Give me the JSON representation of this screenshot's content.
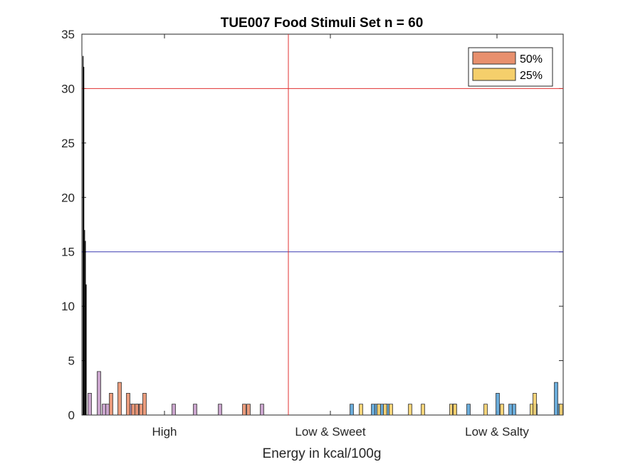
{
  "chart_data": {
    "type": "bar",
    "title": "TUE007 Food Stimuli Set n = 60",
    "xlabel": "Energy in kcal/100g",
    "ylabel": "",
    "ylim": [
      0,
      35
    ],
    "yticks": [
      "0",
      "5",
      "10",
      "15",
      "20",
      "25",
      "30",
      "35"
    ],
    "xtick_labels": [
      "High",
      "Low & Sweet",
      "Low & Salty"
    ],
    "grid": false,
    "legend_placement": "top-right",
    "legend": [
      {
        "label": "50%",
        "color": "#E8906E"
      },
      {
        "label": "25%",
        "color": "#F5CF6B"
      }
    ],
    "reference_lines": [
      {
        "orientation": "horizontal",
        "y": 30,
        "color": "#E03030"
      },
      {
        "orientation": "horizontal",
        "y": 15,
        "color": "#3A3AB0"
      },
      {
        "orientation": "vertical",
        "at": "between High and Low & Sweet",
        "color": "#E03030"
      }
    ],
    "series": [
      {
        "group": "High",
        "color": "#C49BC8",
        "values": [
          2,
          4,
          1,
          1,
          1,
          1,
          1,
          1,
          1,
          1
        ]
      },
      {
        "group": "High",
        "color": "#E8906E",
        "values": [
          2,
          3,
          2,
          1,
          1,
          1,
          2,
          1,
          1
        ]
      },
      {
        "group": "Low & Sweet",
        "color": "#5AA3D6",
        "values": [
          1,
          1,
          1,
          1,
          1
        ]
      },
      {
        "group": "Low & Sweet",
        "color": "#F5CF6B",
        "values": [
          1,
          1,
          1,
          1,
          1
        ]
      },
      {
        "group": "Low & Salty",
        "color": "#5AA3D6",
        "values": [
          1,
          2,
          1,
          1,
          1,
          3,
          1
        ]
      },
      {
        "group": "Low & Salty",
        "color": "#F5CF6B",
        "values": [
          1,
          1,
          1,
          1,
          1,
          1,
          2,
          1,
          1
        ]
      }
    ],
    "colors": {
      "axis": "#262626",
      "outlier_spike": "#000000"
    }
  }
}
